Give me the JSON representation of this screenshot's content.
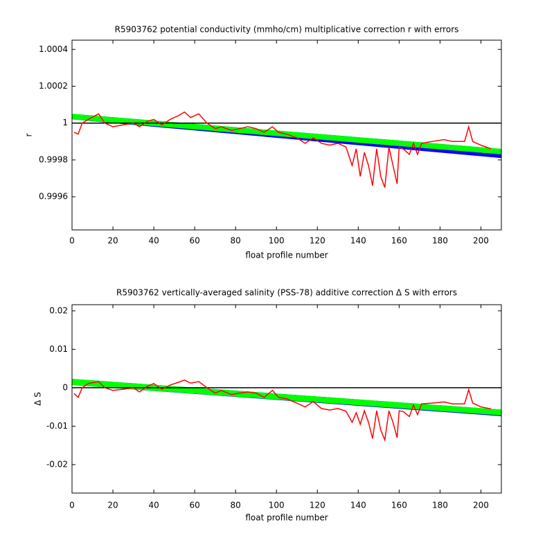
{
  "chart_data": [
    {
      "type": "line",
      "title": "R5903762 potential conductivity (mmho/cm) multiplicative correction r with errors",
      "xlabel": "float profile number",
      "ylabel": "r",
      "xlim": [
        0,
        210
      ],
      "xticks": [
        0,
        20,
        40,
        60,
        80,
        100,
        120,
        140,
        160,
        180,
        200
      ],
      "ylim": [
        0.99942,
        1.00045
      ],
      "yticks": [
        1.0004,
        1.0002,
        1,
        0.9998,
        0.9996
      ],
      "reference_line": 1,
      "reference_color": "#000000",
      "bands": [
        {
          "color": "#0000ff",
          "x": [
            0,
            210
          ],
          "lower": [
            1.00002,
            0.99981
          ],
          "upper": [
            1.00005,
            0.99986
          ]
        },
        {
          "color": "#00ff00",
          "x": [
            0,
            210
          ],
          "lower": [
            1.00002,
            0.99983
          ],
          "upper": [
            1.00005,
            0.99986
          ]
        }
      ],
      "x": [
        1,
        3,
        5,
        8,
        13,
        16,
        20,
        25,
        30,
        33,
        37,
        40,
        44,
        48,
        52,
        55,
        58,
        62,
        66,
        70,
        73,
        78,
        82,
        86,
        90,
        94,
        98,
        101,
        105,
        110,
        114,
        118,
        122,
        126,
        130,
        134,
        137,
        139,
        141,
        143,
        145,
        147,
        149,
        151,
        153,
        155,
        157,
        159,
        160,
        162,
        165,
        167,
        169,
        171,
        176,
        182,
        186,
        192,
        194,
        196,
        200,
        205
      ],
      "series": [
        {
          "color": "#ff0000",
          "values": [
            0.99995,
            0.99994,
            1.0,
            1.00002,
            1.00005,
            1.0,
            0.99998,
            0.99999,
            1.0,
            0.99998,
            1.00001,
            1.00002,
            0.99999,
            1.00002,
            1.00004,
            1.00006,
            1.00003,
            1.00005,
            1.0,
            0.99997,
            0.99998,
            0.99996,
            0.99997,
            0.99998,
            0.99997,
            0.99995,
            0.99998,
            0.99995,
            0.99994,
            0.99992,
            0.99989,
            0.99992,
            0.99989,
            0.99988,
            0.99989,
            0.99987,
            0.99977,
            0.99986,
            0.99971,
            0.99984,
            0.99977,
            0.99966,
            0.99986,
            0.99971,
            0.99965,
            0.99987,
            0.99977,
            0.99967,
            0.99987,
            0.99986,
            0.99983,
            0.99989,
            0.99983,
            0.99989,
            0.9999,
            0.99991,
            0.9999,
            0.9999,
            0.99998,
            0.9999,
            0.99988,
            0.99986
          ]
        }
      ]
    },
    {
      "type": "line",
      "title": "R5903762 vertically-averaged salinity (PSS-78) additive correction Δ S with errors",
      "xlabel": "float profile number",
      "ylabel": "Δ S",
      "xlim": [
        0,
        210
      ],
      "xticks": [
        0,
        20,
        40,
        60,
        80,
        100,
        120,
        140,
        160,
        180,
        200
      ],
      "ylim": [
        -0.0274,
        0.0216
      ],
      "yticks": [
        0.02,
        0.01,
        0,
        -0.01,
        -0.02
      ],
      "reference_line": 0,
      "reference_color": "#000000",
      "bands": [
        {
          "color": "#0000ff",
          "x": [
            0,
            210
          ],
          "lower": [
            0.0007,
            -0.0074
          ],
          "upper": [
            0.0023,
            -0.0057
          ]
        },
        {
          "color": "#00ff00",
          "x": [
            0,
            210
          ],
          "lower": [
            0.0007,
            -0.0072
          ],
          "upper": [
            0.0023,
            -0.0057
          ]
        }
      ],
      "x": [
        1,
        3,
        5,
        8,
        13,
        16,
        20,
        25,
        30,
        33,
        37,
        40,
        44,
        48,
        52,
        55,
        58,
        62,
        66,
        70,
        73,
        78,
        82,
        86,
        90,
        94,
        98,
        101,
        105,
        110,
        114,
        118,
        122,
        126,
        130,
        134,
        137,
        139,
        141,
        143,
        145,
        147,
        149,
        151,
        153,
        155,
        157,
        159,
        160,
        162,
        165,
        167,
        169,
        171,
        176,
        182,
        186,
        192,
        194,
        196,
        200,
        205
      ],
      "series": [
        {
          "color": "#ff0000",
          "values": [
            -0.0015,
            -0.0025,
            0,
            0.0011,
            0.0016,
            0,
            -0.0007,
            -0.0004,
            0,
            -0.0011,
            0.0004,
            0.0011,
            -0.0004,
            0.0007,
            0.0014,
            0.002,
            0.0012,
            0.0016,
            0,
            -0.0014,
            -0.0007,
            -0.0018,
            -0.0014,
            -0.0011,
            -0.0014,
            -0.0025,
            -0.0007,
            -0.0025,
            -0.0029,
            -0.004,
            -0.005,
            -0.0036,
            -0.0054,
            -0.0058,
            -0.0054,
            -0.0061,
            -0.009,
            -0.0065,
            -0.0095,
            -0.006,
            -0.009,
            -0.0132,
            -0.006,
            -0.011,
            -0.0136,
            -0.006,
            -0.009,
            -0.013,
            -0.006,
            -0.0062,
            -0.0075,
            -0.0045,
            -0.007,
            -0.0042,
            -0.004,
            -0.0037,
            -0.0042,
            -0.0042,
            -0.0005,
            -0.004,
            -0.005,
            -0.0055
          ]
        }
      ]
    }
  ]
}
